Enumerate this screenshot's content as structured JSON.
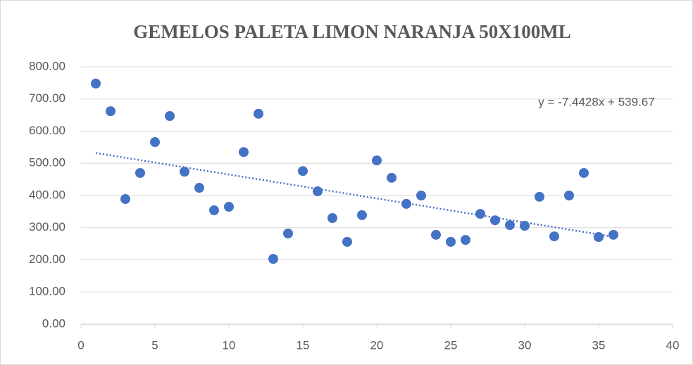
{
  "chart_data": {
    "type": "scatter",
    "title": "GEMELOS PALETA LIMON NARANJA 50X100ML",
    "x": [
      1,
      2,
      3,
      4,
      5,
      6,
      7,
      8,
      9,
      10,
      11,
      12,
      13,
      14,
      15,
      16,
      17,
      18,
      19,
      20,
      21,
      22,
      23,
      24,
      25,
      26,
      27,
      28,
      29,
      30,
      31,
      32,
      33,
      34,
      35,
      36
    ],
    "series": [
      {
        "color": "#4472c4",
        "values": [
          748,
          662,
          389,
          470,
          566,
          647,
          474,
          424,
          354,
          365,
          535,
          654,
          203,
          282,
          476,
          413,
          330,
          256,
          339,
          509,
          455,
          374,
          400,
          278,
          256,
          262,
          343,
          323,
          308,
          306,
          396,
          273,
          400,
          470,
          271,
          278
        ]
      }
    ],
    "trendline": {
      "slope": -7.4428,
      "intercept": 539.67,
      "label": "y = -7.4428x + 539.67",
      "color": "#4472c4"
    },
    "xlim": [
      0,
      40
    ],
    "xticks": [
      0,
      5,
      10,
      15,
      20,
      25,
      30,
      35,
      40
    ],
    "ylim": [
      0,
      800
    ],
    "yticks": [
      {
        "value": 0,
        "label": "0.00"
      },
      {
        "value": 100,
        "label": "100.00"
      },
      {
        "value": 200,
        "label": "200.00"
      },
      {
        "value": 300,
        "label": "300.00"
      },
      {
        "value": 400,
        "label": "400.00"
      },
      {
        "value": 500,
        "label": "500.00"
      },
      {
        "value": 600,
        "label": "600.00"
      },
      {
        "value": 700,
        "label": "700.00"
      },
      {
        "value": 800,
        "label": "800.00"
      }
    ],
    "grid": true
  }
}
